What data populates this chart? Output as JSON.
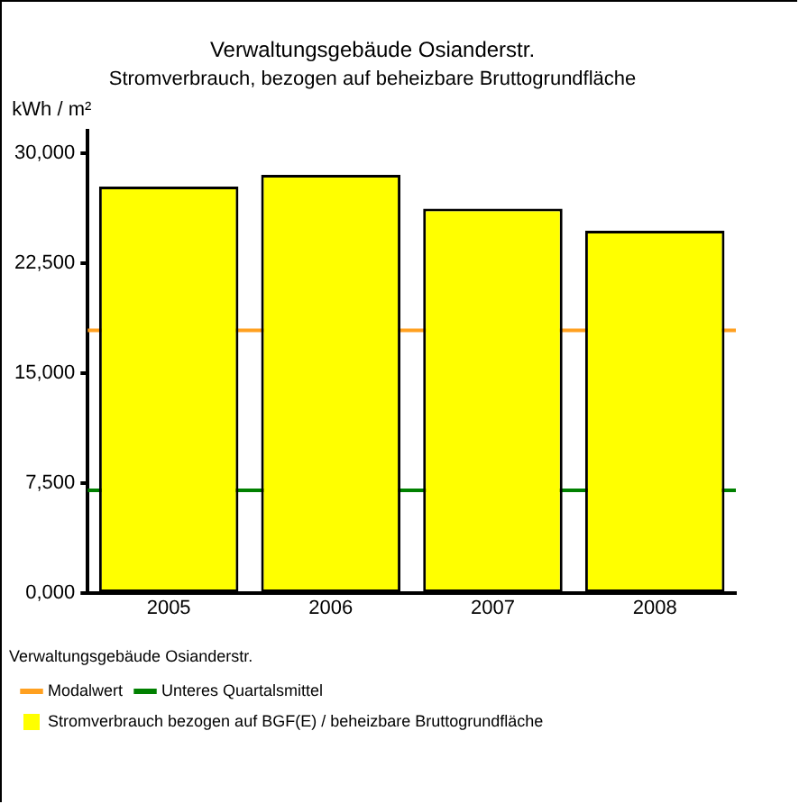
{
  "chart_data": {
    "type": "bar",
    "title": "Verwaltungsgebäude Osianderstr.",
    "subtitle": "Stromverbrauch, bezogen auf beheizbare Bruttogrundfläche",
    "ylabel": "kWh / m²",
    "legend_title": "Verwaltungsgebäude Osianderstr.",
    "categories": [
      "2005",
      "2006",
      "2007",
      "2008"
    ],
    "series": [
      {
        "name": "Stromverbrauch bezogen auf BGF(E) / beheizbare Bruttogrundfläche",
        "color": "#ffff00",
        "values": [
          27700,
          28500,
          26200,
          24700
        ]
      }
    ],
    "ylim": [
      0,
      31500
    ],
    "yticks": [
      {
        "value": 0,
        "label": "0,000"
      },
      {
        "value": 7500,
        "label": "7,500"
      },
      {
        "value": 15000,
        "label": "15,000"
      },
      {
        "value": 22500,
        "label": "22,500"
      },
      {
        "value": 30000,
        "label": "30,000"
      }
    ],
    "ref_lines": [
      {
        "axis": "y",
        "value": 17900,
        "label": "Modalwert",
        "color": "#ffa020"
      },
      {
        "axis": "y",
        "value": 7000,
        "label": "Unteres Quartalsmittel",
        "color": "#008000"
      }
    ],
    "grid": false,
    "legend": "bottom"
  }
}
